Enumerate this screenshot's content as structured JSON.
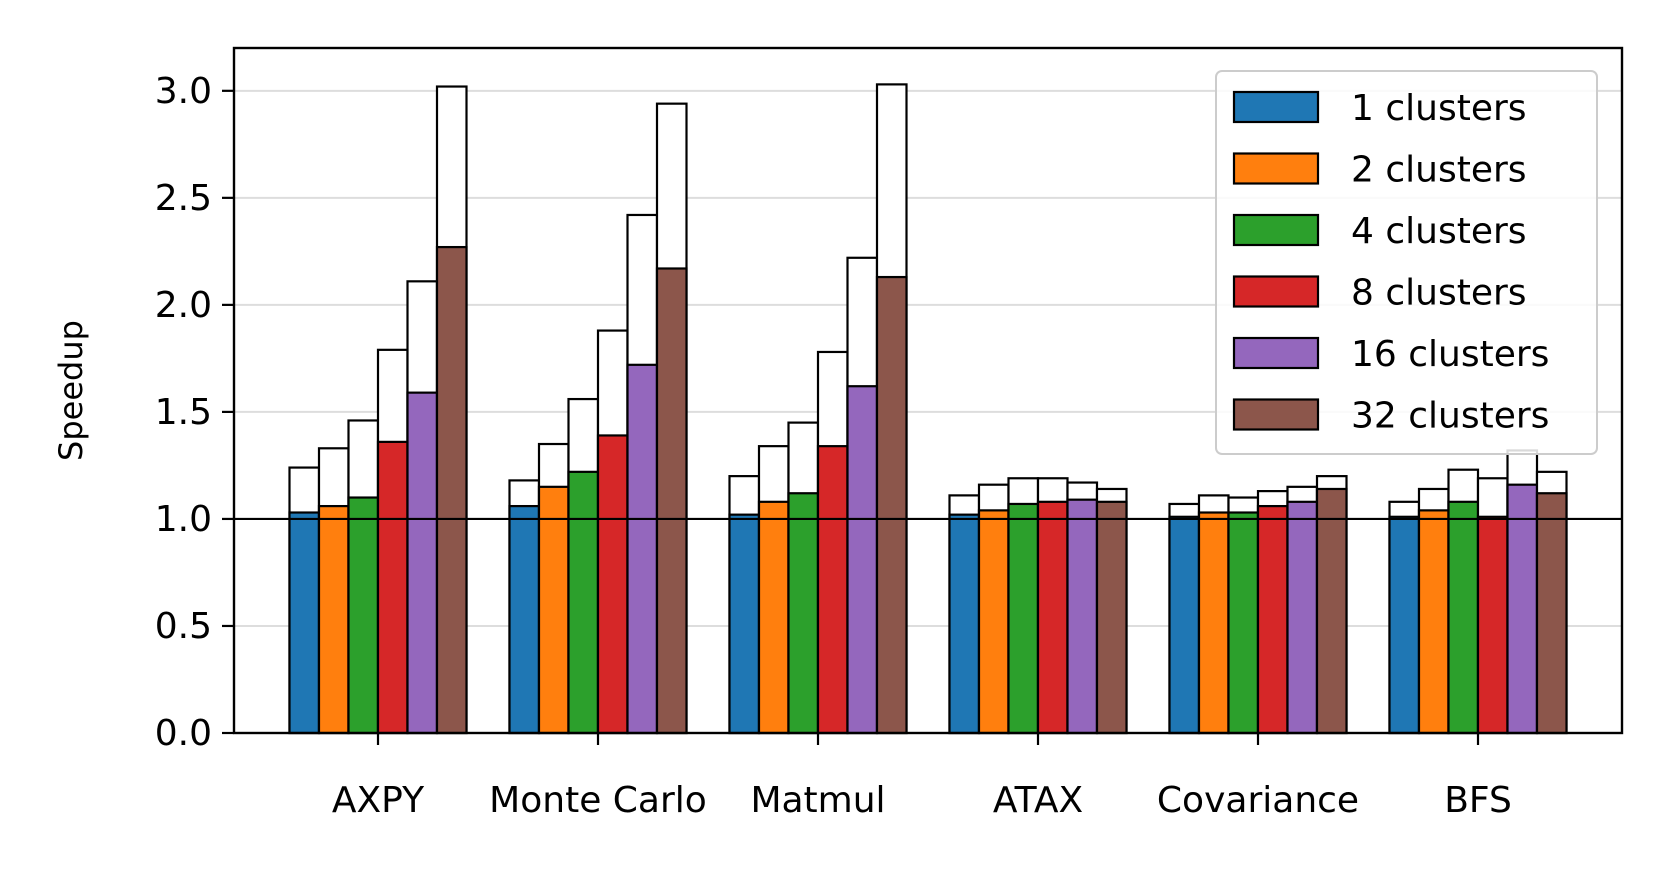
{
  "chart_data": {
    "type": "bar",
    "title": "",
    "xlabel": "",
    "ylabel": "Speedup",
    "ylim": [
      0.0,
      3.2
    ],
    "yticks": [
      "0.0",
      "0.5",
      "1.0",
      "1.5",
      "2.0",
      "2.5",
      "3.0"
    ],
    "ytick_values": [
      0.0,
      0.5,
      1.0,
      1.5,
      2.0,
      2.5,
      3.0
    ],
    "grid": "horizontal",
    "reference_line": 1.0,
    "legend_position": "top-right",
    "categories": [
      "AXPY",
      "Monte Carlo",
      "Matmul",
      "ATAX",
      "Covariance",
      "BFS"
    ],
    "series": [
      {
        "name": "1 clusters",
        "color": "#1f77b4",
        "values": [
          1.03,
          1.06,
          1.02,
          1.02,
          1.01,
          1.01
        ],
        "upper": [
          1.24,
          1.18,
          1.2,
          1.11,
          1.07,
          1.08
        ]
      },
      {
        "name": "2 clusters",
        "color": "#ff7f0e",
        "values": [
          1.06,
          1.15,
          1.08,
          1.04,
          1.03,
          1.04
        ],
        "upper": [
          1.33,
          1.35,
          1.34,
          1.16,
          1.11,
          1.14
        ]
      },
      {
        "name": "4 clusters",
        "color": "#2ca02c",
        "values": [
          1.1,
          1.22,
          1.12,
          1.07,
          1.03,
          1.08
        ],
        "upper": [
          1.46,
          1.56,
          1.45,
          1.19,
          1.1,
          1.23
        ]
      },
      {
        "name": "8 clusters",
        "color": "#d62728",
        "values": [
          1.36,
          1.39,
          1.34,
          1.08,
          1.06,
          1.01
        ],
        "upper": [
          1.79,
          1.88,
          1.78,
          1.19,
          1.13,
          1.19
        ]
      },
      {
        "name": "16 clusters",
        "color": "#9467bd",
        "values": [
          1.59,
          1.72,
          1.62,
          1.09,
          1.08,
          1.16
        ],
        "upper": [
          2.11,
          2.42,
          2.22,
          1.17,
          1.15,
          1.32
        ]
      },
      {
        "name": "32 clusters",
        "color": "#8c564b",
        "values": [
          2.27,
          2.17,
          2.13,
          1.08,
          1.14,
          1.12
        ],
        "upper": [
          3.02,
          2.94,
          3.03,
          1.14,
          1.2,
          1.22
        ]
      }
    ]
  }
}
